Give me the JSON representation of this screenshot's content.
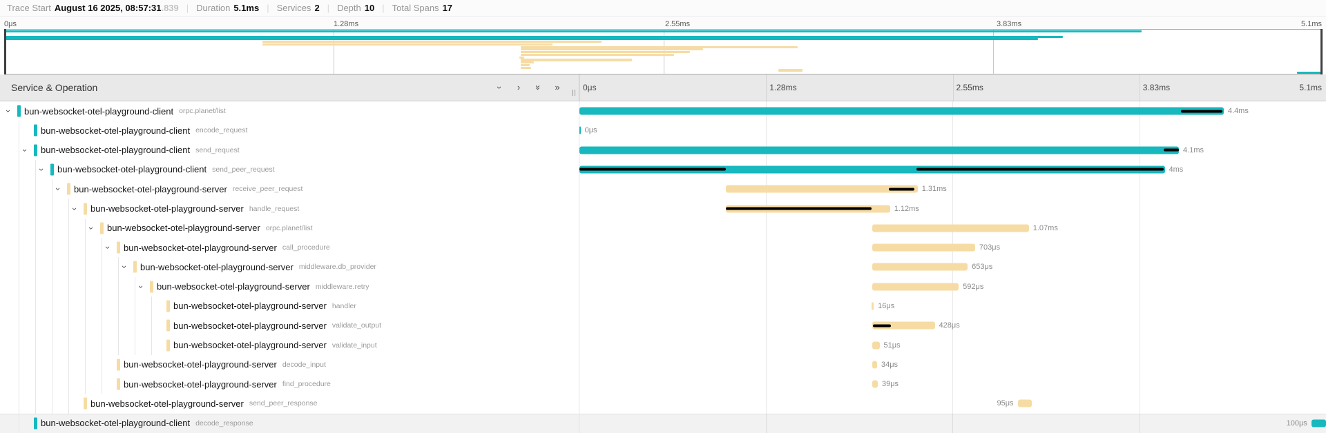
{
  "summary": {
    "trace_start_label": "Trace Start",
    "trace_start_date": "August 16 2025, 08:57:31",
    "trace_start_fraction": ".839",
    "separator": "|",
    "duration_label": "Duration",
    "duration_value": "5.1ms",
    "services_label": "Services",
    "services_value": "2",
    "depth_label": "Depth",
    "depth_value": "10",
    "total_spans_label": "Total Spans",
    "total_spans_value": "17"
  },
  "timeline": {
    "ticks": [
      "0μs",
      "1.28ms",
      "2.55ms",
      "3.83ms",
      "5.1ms"
    ],
    "tick_positions_pct": [
      0,
      25,
      50,
      75,
      100
    ],
    "gridline_positions_pct": [
      25,
      50,
      75
    ],
    "total_duration": "5.1ms"
  },
  "header": {
    "title": "Service & Operation",
    "icons": {
      "collapse_one": "›",
      "expand_one": "›",
      "collapse_all": "»",
      "expand_all": "»"
    }
  },
  "colors": {
    "client": "#17b8be",
    "server": "#f6dca4",
    "critical_path": "#000000"
  },
  "spans": [
    {
      "service": "bun-websocket-otel-playground-client",
      "operation": "orpc.planet/list",
      "depth": 0,
      "has_children": true,
      "color": "client",
      "start": 0,
      "end": 86.3,
      "duration": "4.4ms",
      "label_side": "right",
      "critical": [
        [
          80.6,
          86.1
        ]
      ],
      "highlighted": false
    },
    {
      "service": "bun-websocket-otel-playground-client",
      "operation": "encode_request",
      "depth": 1,
      "has_children": false,
      "color": "client",
      "start": 0,
      "end": 0.15,
      "duration": "0μs",
      "label_side": "right",
      "critical": [],
      "highlighted": false
    },
    {
      "service": "bun-websocket-otel-playground-client",
      "operation": "send_request",
      "depth": 1,
      "has_children": true,
      "color": "client",
      "start": 0,
      "end": 80.3,
      "duration": "4.1ms",
      "label_side": "right",
      "critical": [
        [
          78.3,
          80.3
        ]
      ],
      "highlighted": false
    },
    {
      "service": "bun-websocket-otel-playground-client",
      "operation": "send_peer_request",
      "depth": 2,
      "has_children": true,
      "color": "client",
      "start": 0,
      "end": 78.4,
      "duration": "4ms",
      "label_side": "right",
      "critical": [
        [
          0,
          19.6
        ],
        [
          45.1,
          78.3
        ]
      ],
      "highlighted": false
    },
    {
      "service": "bun-websocket-otel-playground-server",
      "operation": "receive_peer_request",
      "depth": 3,
      "has_children": true,
      "color": "server",
      "start": 19.6,
      "end": 45.3,
      "duration": "1.31ms",
      "label_side": "right",
      "critical": [
        [
          41.4,
          44.9
        ]
      ],
      "highlighted": false
    },
    {
      "service": "bun-websocket-otel-playground-server",
      "operation": "handle_request",
      "depth": 4,
      "has_children": true,
      "color": "server",
      "start": 19.6,
      "end": 41.6,
      "duration": "1.12ms",
      "label_side": "right",
      "critical": [
        [
          19.6,
          39.1
        ]
      ],
      "highlighted": false
    },
    {
      "service": "bun-websocket-otel-playground-server",
      "operation": "orpc.planet/list",
      "depth": 5,
      "has_children": true,
      "color": "server",
      "start": 39.2,
      "end": 60.2,
      "duration": "1.07ms",
      "label_side": "right",
      "critical": [],
      "highlighted": false
    },
    {
      "service": "bun-websocket-otel-playground-server",
      "operation": "call_procedure",
      "depth": 6,
      "has_children": true,
      "color": "server",
      "start": 39.2,
      "end": 53.0,
      "duration": "703μs",
      "label_side": "right",
      "critical": [],
      "highlighted": false
    },
    {
      "service": "bun-websocket-otel-playground-server",
      "operation": "middleware.db_provider",
      "depth": 7,
      "has_children": true,
      "color": "server",
      "start": 39.2,
      "end": 52.0,
      "duration": "653μs",
      "label_side": "right",
      "critical": [],
      "highlighted": false
    },
    {
      "service": "bun-websocket-otel-playground-server",
      "operation": "middleware.retry",
      "depth": 8,
      "has_children": true,
      "color": "server",
      "start": 39.2,
      "end": 50.8,
      "duration": "592μs",
      "label_side": "right",
      "critical": [],
      "highlighted": false
    },
    {
      "service": "bun-websocket-otel-playground-server",
      "operation": "handler",
      "depth": 9,
      "has_children": false,
      "color": "server",
      "start": 39.1,
      "end": 39.42,
      "duration": "16μs",
      "label_side": "right",
      "critical": [],
      "highlighted": false
    },
    {
      "service": "bun-websocket-otel-playground-server",
      "operation": "validate_output",
      "depth": 9,
      "has_children": false,
      "color": "server",
      "start": 39.2,
      "end": 47.6,
      "duration": "428μs",
      "label_side": "right",
      "critical": [
        [
          39.3,
          41.7
        ]
      ],
      "highlighted": false
    },
    {
      "service": "bun-websocket-otel-playground-server",
      "operation": "validate_input",
      "depth": 9,
      "has_children": false,
      "color": "server",
      "start": 39.2,
      "end": 40.2,
      "duration": "51μs",
      "label_side": "right",
      "critical": [],
      "highlighted": false
    },
    {
      "service": "bun-websocket-otel-playground-server",
      "operation": "decode_input",
      "depth": 6,
      "has_children": false,
      "color": "server",
      "start": 39.2,
      "end": 39.87,
      "duration": "34μs",
      "label_side": "right",
      "critical": [],
      "highlighted": false
    },
    {
      "service": "bun-websocket-otel-playground-server",
      "operation": "find_procedure",
      "depth": 6,
      "has_children": false,
      "color": "server",
      "start": 39.2,
      "end": 39.96,
      "duration": "39μs",
      "label_side": "right",
      "critical": [],
      "highlighted": false
    },
    {
      "service": "bun-websocket-otel-playground-server",
      "operation": "send_peer_response",
      "depth": 4,
      "has_children": false,
      "color": "server",
      "start": 58.7,
      "end": 60.56,
      "duration": "95μs",
      "label_side": "left",
      "critical": [],
      "highlighted": false
    },
    {
      "service": "bun-websocket-otel-playground-client",
      "operation": "decode_response",
      "depth": 1,
      "has_children": false,
      "color": "client",
      "start": 98.04,
      "end": 100,
      "duration": "100μs",
      "label_side": "left",
      "critical": [],
      "highlighted": true
    }
  ]
}
